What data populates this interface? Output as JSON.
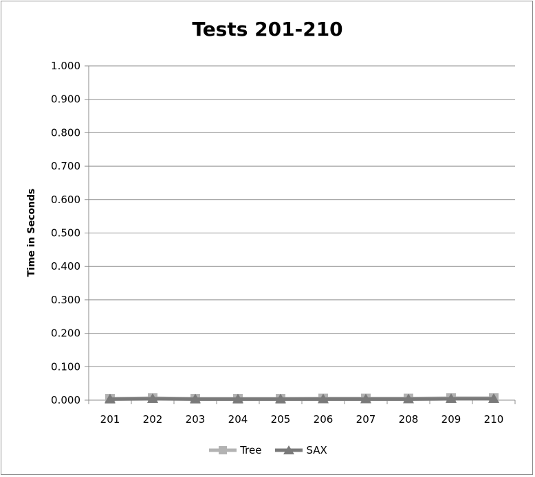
{
  "chart_data": {
    "type": "line",
    "title": "Tests 201-210",
    "xlabel": "",
    "ylabel": "Time in Seconds",
    "categories": [
      "201",
      "202",
      "203",
      "204",
      "205",
      "206",
      "207",
      "208",
      "209",
      "210"
    ],
    "ylim": [
      0,
      1
    ],
    "yticks": [
      "0.000",
      "0.100",
      "0.200",
      "0.300",
      "0.400",
      "0.500",
      "0.600",
      "0.700",
      "0.800",
      "0.900",
      "1.000"
    ],
    "grid": true,
    "legend_position": "bottom",
    "series": [
      {
        "name": "Tree",
        "marker": "square",
        "color": "#b3b3b3",
        "values": [
          0.004,
          0.006,
          0.004,
          0.004,
          0.004,
          0.005,
          0.005,
          0.005,
          0.006,
          0.006
        ]
      },
      {
        "name": "SAX",
        "marker": "triangle",
        "color": "#7a7a7a",
        "values": [
          0.003,
          0.004,
          0.003,
          0.003,
          0.003,
          0.003,
          0.003,
          0.003,
          0.004,
          0.004
        ]
      }
    ]
  }
}
